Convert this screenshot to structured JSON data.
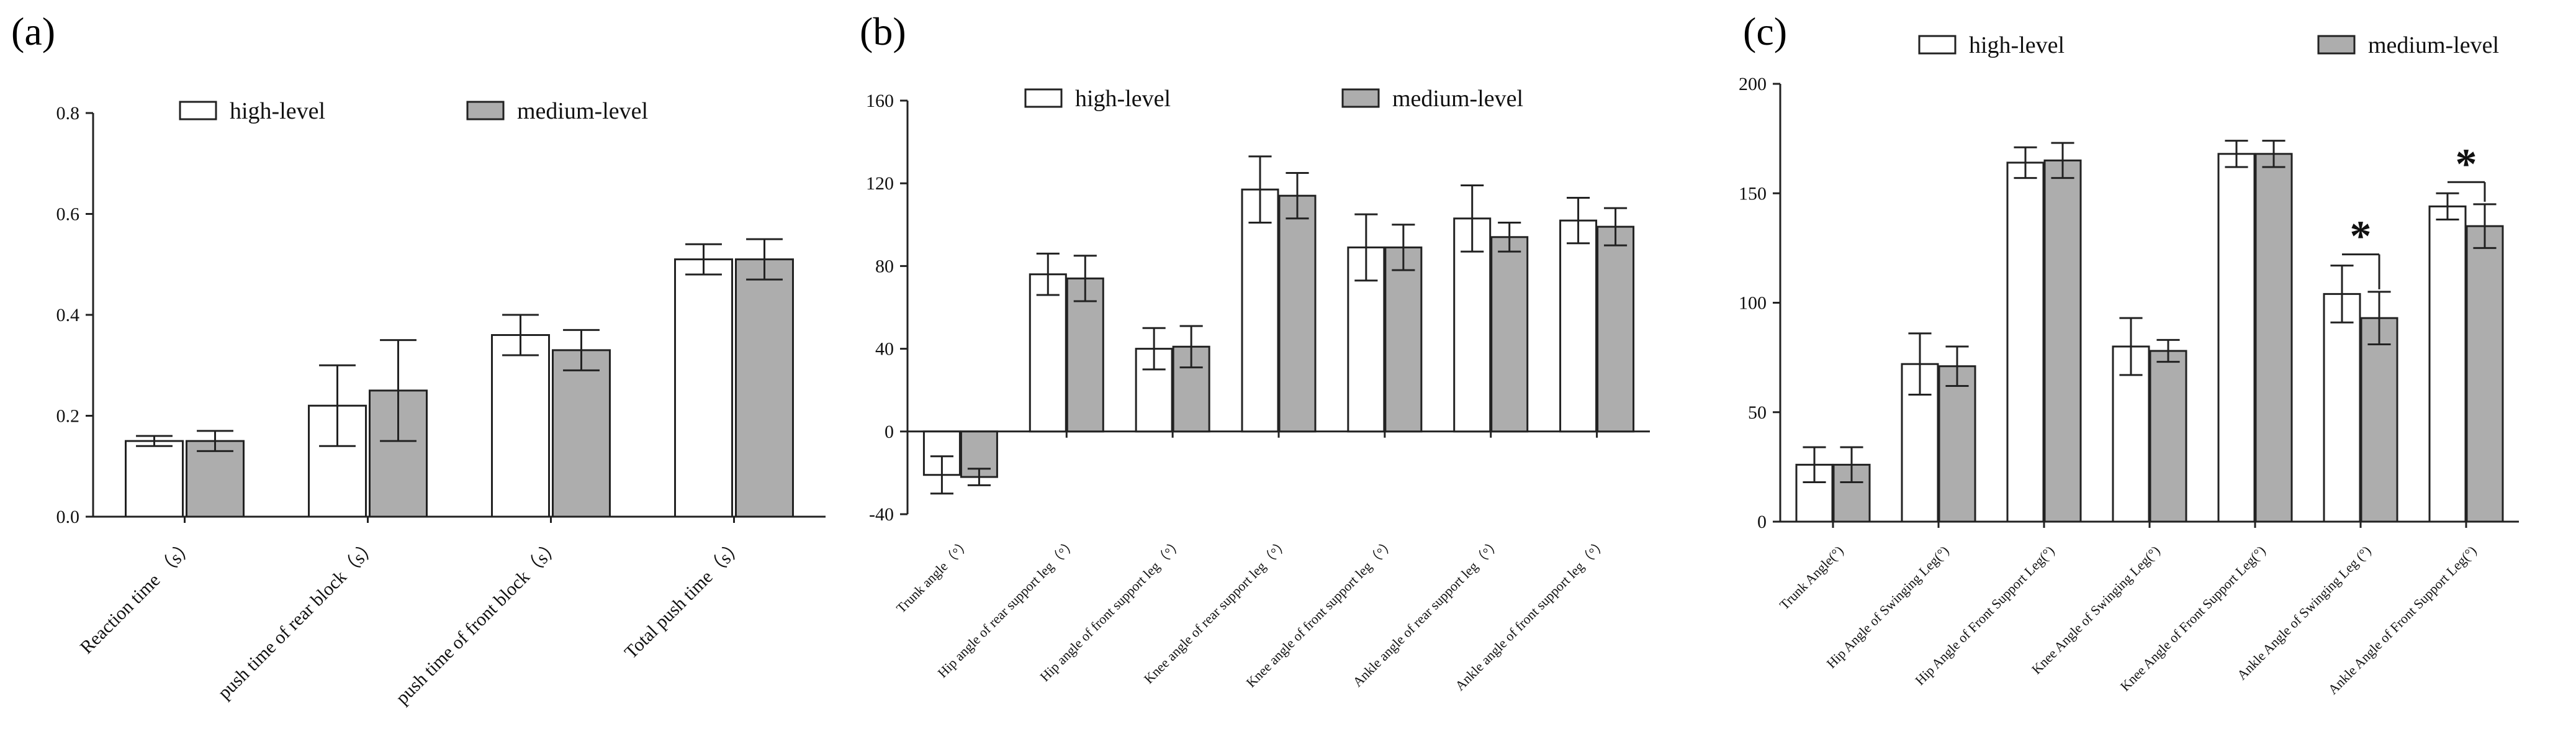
{
  "colors": {
    "high": "#ffffff",
    "medium": "#adadad",
    "stroke": "#222222"
  },
  "chart_data": [
    {
      "type": "bar",
      "panel": "(a)",
      "series": [
        {
          "name": "high-level",
          "values": [
            0.15,
            0.22,
            0.36,
            0.51
          ],
          "errors": [
            0.01,
            0.08,
            0.04,
            0.03
          ]
        },
        {
          "name": "medium-level",
          "values": [
            0.15,
            0.25,
            0.33,
            0.51
          ],
          "errors": [
            0.02,
            0.1,
            0.04,
            0.04
          ]
        }
      ],
      "categories": [
        "Reaction time （s）",
        "push time of rear block（s）",
        "push time of front block（s）",
        "Total push time（s）"
      ],
      "yticks": [
        "0.0",
        "0.2",
        "0.4",
        "0.6",
        "0.8"
      ],
      "ylim": [
        0,
        0.8
      ],
      "legend": {
        "high": "high-level",
        "medium": "medium-level"
      },
      "significance": []
    },
    {
      "type": "bar",
      "panel": "(b)",
      "series": [
        {
          "name": "high-level",
          "values": [
            -21,
            76,
            40,
            117,
            89,
            103,
            102
          ],
          "errors": [
            9,
            10,
            10,
            16,
            16,
            16,
            11
          ]
        },
        {
          "name": "medium-level",
          "values": [
            -22,
            74,
            41,
            114,
            89,
            94,
            99
          ],
          "errors": [
            4,
            11,
            10,
            11,
            11,
            7,
            9
          ]
        }
      ],
      "categories": [
        "Trunk angle（°）",
        "Hip angle of rear support leg（°）",
        "Hip angle of front support leg（°）",
        "Knee angle of rear support leg（°）",
        "Knee angle of front support leg（°）",
        "Ankle angle of rear support leg（°）",
        "Ankle angle of front support leg（°）"
      ],
      "yticks": [
        "-40",
        "0",
        "40",
        "80",
        "120",
        "160"
      ],
      "ylim": [
        -40,
        160
      ],
      "legend": {
        "high": "high-level",
        "medium": "medium-level"
      },
      "significance": []
    },
    {
      "type": "bar",
      "panel": "(c)",
      "series": [
        {
          "name": "high-level",
          "values": [
            26,
            72,
            164,
            80,
            168,
            104,
            144
          ],
          "errors": [
            8,
            14,
            7,
            13,
            6,
            13,
            6
          ]
        },
        {
          "name": "medium-level",
          "values": [
            26,
            71,
            165,
            78,
            168,
            93,
            135
          ],
          "errors": [
            8,
            9,
            8,
            5,
            6,
            12,
            10
          ]
        }
      ],
      "categories": [
        "Trunk Angle(°)",
        "Hip Angle of Swinging Leg(°)",
        "Hip Angle of Front Support Leg(°)",
        "Knee Angle of Swinging Leg(°)",
        "Knee Angle of Front Support Leg(°)",
        "Ankle Angle of Swinging Leg (°)",
        "Ankle Angle of Front Support Leg(°)"
      ],
      "yticks": [
        "0",
        "50",
        "100",
        "150",
        "200"
      ],
      "ylim": [
        0,
        200
      ],
      "legend": {
        "high": "high-level",
        "medium": "medium-level"
      },
      "significance": [
        {
          "category": 5,
          "label": "*"
        },
        {
          "category": 6,
          "label": "*"
        }
      ]
    }
  ]
}
